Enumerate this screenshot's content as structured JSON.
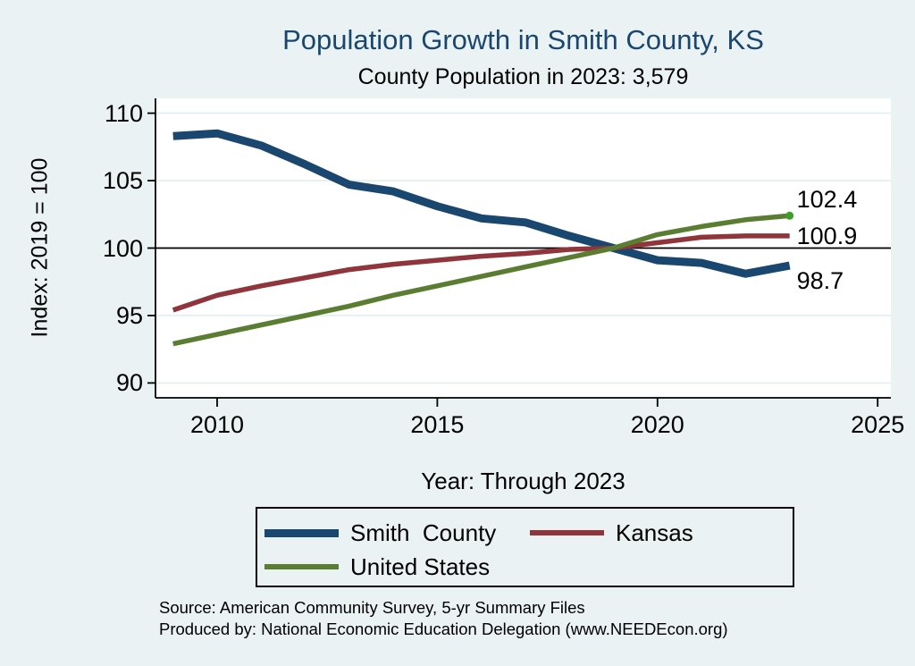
{
  "title": "Population Growth in Smith County, KS",
  "subtitle": "County Population in 2023: 3,579",
  "y_axis_title": "Index: 2019 = 100",
  "x_axis_title": "Year: Through 2023",
  "source": {
    "line1": "Source: American Community Survey, 5-yr Summary Files",
    "line2": "Produced by: National Economic Education Delegation (www.NEEDEcon.org)"
  },
  "colors": {
    "background": "#eaf2f3",
    "plot_background": "#ffffff",
    "grid": "#e2edf0",
    "axis": "#000000",
    "reference_line": "#000000",
    "title": "#1a476f"
  },
  "legend": {
    "items": [
      {
        "label": "Smith  County",
        "series": 0
      },
      {
        "label": "Kansas",
        "series": 1
      },
      {
        "label": "United States",
        "series": 2
      }
    ]
  },
  "chart_data": {
    "type": "line",
    "title": "Population Growth in Smith County, KS",
    "subtitle": "County Population in 2023: 3,579",
    "xlabel": "Year: Through 2023",
    "ylabel": "Index: 2019 = 100",
    "x": [
      2009,
      2010,
      2011,
      2012,
      2013,
      2014,
      2015,
      2016,
      2017,
      2018,
      2019,
      2020,
      2021,
      2022,
      2023
    ],
    "series": [
      {
        "name": "Smith County",
        "color": "#1a476f",
        "line_width": 9,
        "end_label": "98.7",
        "end_label_dy": 17,
        "end_marker": false,
        "values": [
          108.3,
          108.5,
          107.6,
          106.2,
          104.7,
          104.2,
          103.1,
          102.2,
          101.9,
          100.9,
          100.0,
          99.1,
          98.9,
          98.1,
          98.7
        ]
      },
      {
        "name": "Kansas",
        "color": "#90353b",
        "line_width": 5.5,
        "end_label": "100.9",
        "end_label_dy": 0,
        "end_marker": false,
        "values": [
          95.4,
          96.5,
          97.2,
          97.8,
          98.4,
          98.8,
          99.1,
          99.4,
          99.6,
          99.9,
          100.0,
          100.4,
          100.8,
          100.9,
          100.9
        ]
      },
      {
        "name": "United States",
        "color": "#5a7d32",
        "line_width": 5.5,
        "end_label": "102.4",
        "end_label_dy": -18,
        "end_marker": true,
        "marker_color": "#3ca028",
        "values": [
          92.9,
          93.6,
          94.3,
          95.0,
          95.7,
          96.5,
          97.2,
          97.9,
          98.6,
          99.3,
          100.0,
          101.0,
          101.6,
          102.1,
          102.4
        ]
      }
    ],
    "x_ticks": [
      2010,
      2015,
      2020,
      2025
    ],
    "y_ticks": [
      90,
      95,
      100,
      105,
      110
    ],
    "xlim": [
      2008.6,
      2025.3
    ],
    "ylim": [
      88.9,
      111.1
    ],
    "reference_line": 100,
    "grid": true,
    "legend_position": "bottom"
  }
}
